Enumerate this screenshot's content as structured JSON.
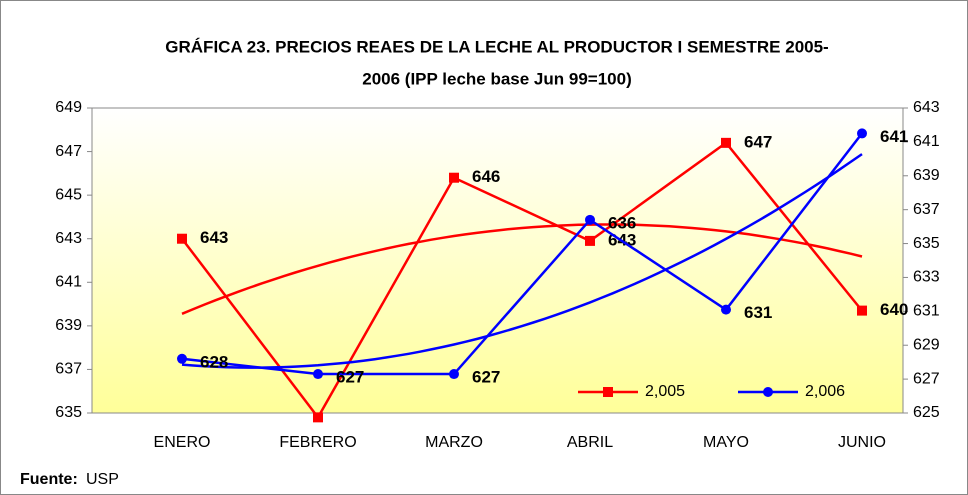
{
  "chart_data": {
    "type": "line",
    "title": [
      "GRÁFICA 23. PRECIOS REAES DE LA LECHE AL PRODUCTOR I SEMESTRE 2005-",
      "2006 (IPP leche base Jun 99=100)"
    ],
    "categories": [
      "ENERO",
      "FEBRERO",
      "MARZO",
      "ABRIL",
      "MAYO",
      "JUNIO"
    ],
    "series": [
      {
        "name": "2,005",
        "color": "#ff0000",
        "marker": "square",
        "values": [
          643,
          634.8,
          645.8,
          642.9,
          647.4,
          639.7
        ],
        "value_labels": [
          "643",
          null,
          "646",
          "643",
          "647",
          "640"
        ]
      },
      {
        "name": "2,006",
        "color": "#0000ff",
        "marker": "circle",
        "axis": "y2",
        "values": [
          628.2,
          627.3,
          627.3,
          636.4,
          631.1,
          641.5
        ],
        "value_labels": [
          "628",
          "627",
          "627",
          "636",
          "631",
          "641"
        ]
      }
    ],
    "ylim": [
      635,
      649
    ],
    "yticks": [
      635,
      637,
      639,
      641,
      643,
      645,
      647,
      649
    ],
    "y2lim": [
      625,
      643
    ],
    "y2ticks": [
      625,
      627,
      629,
      631,
      633,
      635,
      637,
      639,
      641,
      643
    ],
    "trendline": true,
    "legend": "lower-right",
    "source": {
      "label": "Fuente:",
      "text": "USP"
    }
  }
}
